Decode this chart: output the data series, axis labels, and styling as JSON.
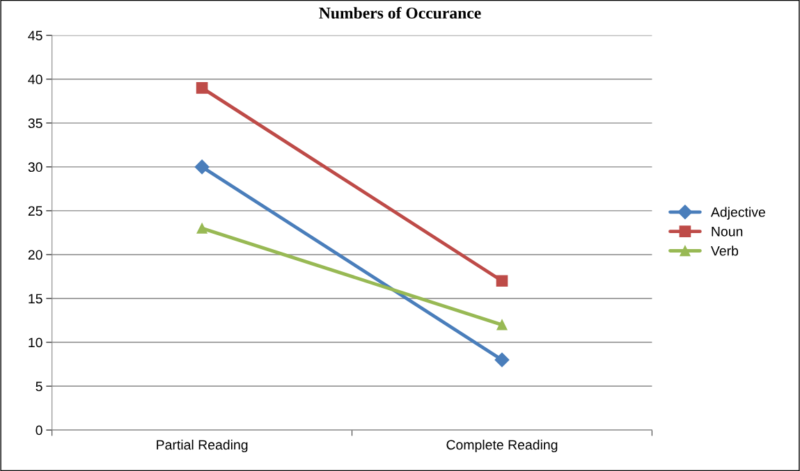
{
  "chart_data": {
    "type": "line",
    "title": "Numbers of Occurance",
    "categories": [
      "Partial Reading",
      "Complete Reading"
    ],
    "series": [
      {
        "name": "Adjective",
        "color": "#4a7ebb",
        "values": [
          30,
          8
        ],
        "marker": "diamond"
      },
      {
        "name": "Noun",
        "color": "#be4b48",
        "values": [
          39,
          17
        ],
        "marker": "square"
      },
      {
        "name": "Verb",
        "color": "#98b954",
        "values": [
          23,
          12
        ],
        "marker": "triangle"
      }
    ],
    "ylim": [
      0,
      45
    ],
    "yticks": [
      0,
      5,
      10,
      15,
      20,
      25,
      30,
      35,
      40,
      45
    ],
    "grid": "y",
    "legend": "right",
    "line_style": "solid"
  }
}
